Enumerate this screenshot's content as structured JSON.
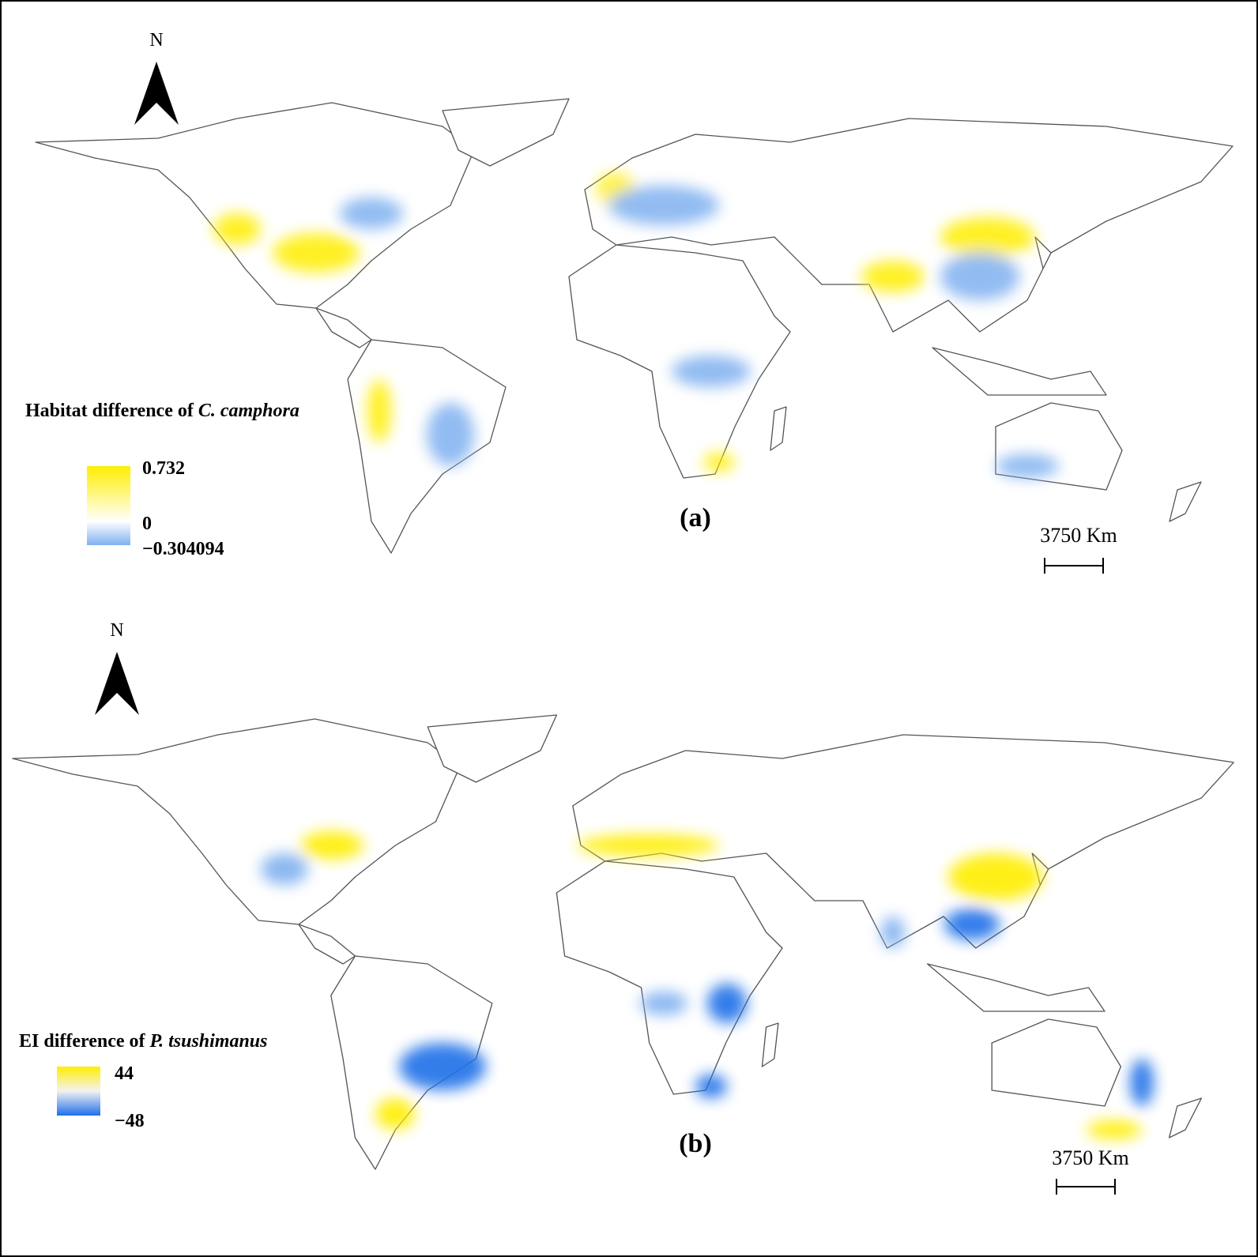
{
  "panels": [
    {
      "north": "N",
      "label": "(a)",
      "scale": "3750  Km",
      "legend": {
        "title": "Habitat difference of ",
        "species": "C. camphora",
        "max": "0.732",
        "mid": "0",
        "min": "−0.304094"
      }
    },
    {
      "north": "N",
      "label": "(b)",
      "scale": "3750  Km",
      "legend": {
        "title": "EI difference of ",
        "species": "P. tsushimanus",
        "max": "44",
        "min": "−48"
      }
    }
  ]
}
